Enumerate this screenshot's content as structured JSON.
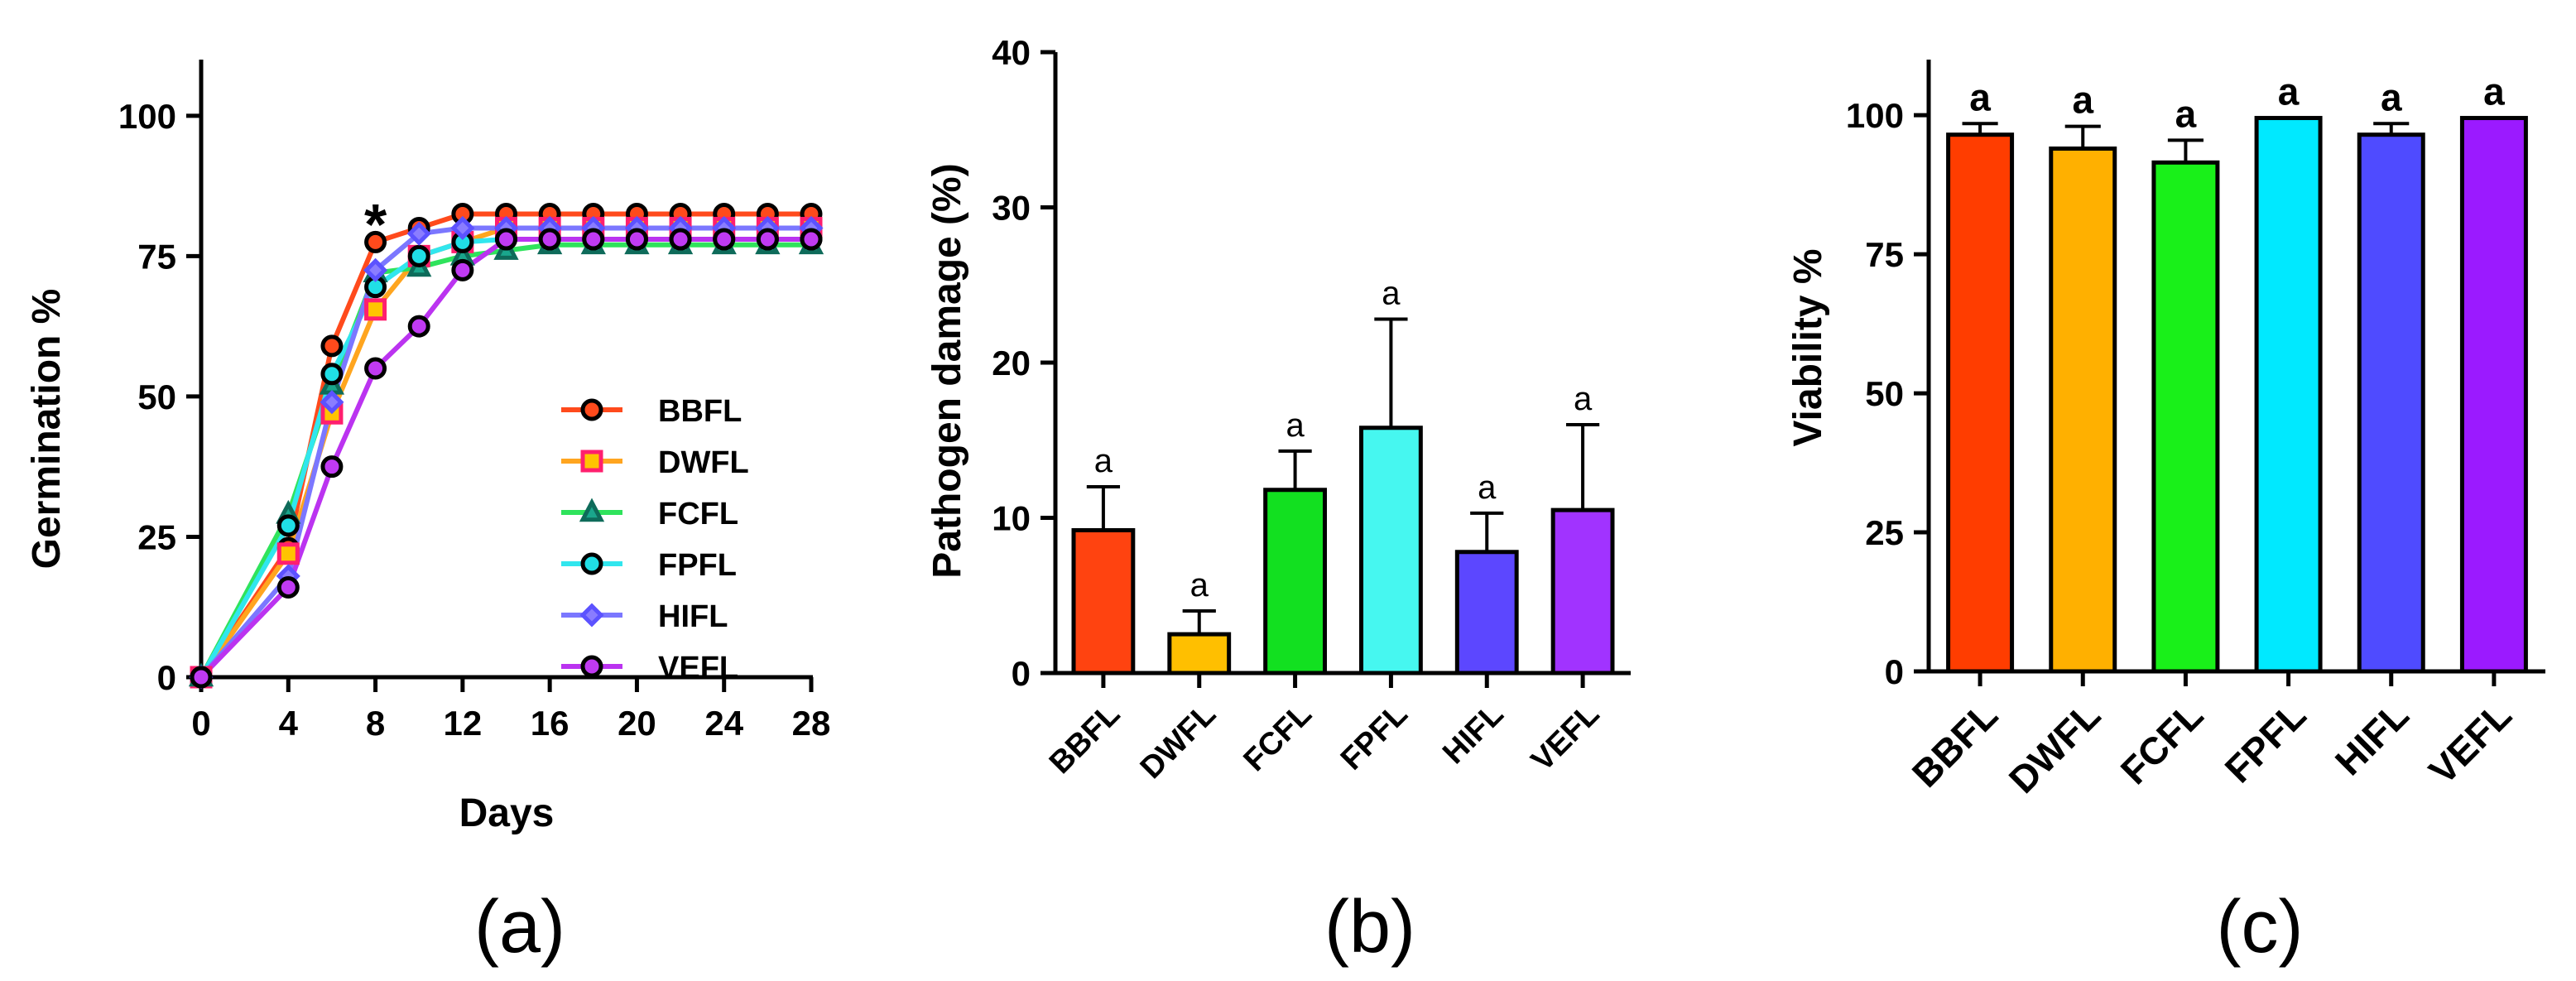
{
  "chart_data": [
    {
      "type": "line",
      "panel_label": "(a)",
      "xlabel": "Days",
      "ylabel": "Germination %",
      "x_ticks": [
        "0",
        "4",
        "8",
        "12",
        "16",
        "20",
        "24",
        "28"
      ],
      "y_ticks": [
        "0",
        "25",
        "50",
        "75",
        "100"
      ],
      "xlim": [
        0,
        28
      ],
      "ylim": [
        0,
        110
      ],
      "x": [
        0,
        4,
        6,
        8,
        10,
        12,
        14,
        16,
        18,
        20,
        22,
        24,
        26,
        28
      ],
      "annotation": {
        "text": "*",
        "x": 8,
        "y": 83
      },
      "legend_position": "bottom-right",
      "series": [
        {
          "name": "BBFL",
          "color": "#ff4a1c",
          "marker": "circle",
          "marker_fill": "#ff4a1c",
          "marker_edge": "#000000",
          "values": [
            0,
            23,
            59,
            77.5,
            80,
            82.5,
            82.5,
            82.5,
            82.5,
            82.5,
            82.5,
            82.5,
            82.5,
            82.5
          ]
        },
        {
          "name": "DWFL",
          "color": "#ffa51f",
          "marker": "square",
          "marker_fill": "#ffc400",
          "marker_edge": "#ff1f6e",
          "values": [
            0,
            22,
            47,
            65.5,
            75,
            77.5,
            80,
            80,
            80,
            80,
            80,
            80,
            80,
            80
          ]
        },
        {
          "name": "FCFL",
          "color": "#2fe35c",
          "marker": "triangle",
          "marker_fill": "#1aa68c",
          "marker_edge": "#0e6b5a",
          "values": [
            0,
            29,
            52,
            72,
            73,
            75,
            76,
            77,
            77,
            77,
            77,
            77,
            77,
            77
          ]
        },
        {
          "name": "FPFL",
          "color": "#31e6ee",
          "marker": "circle",
          "marker_fill": "#20dfe6",
          "marker_edge": "#000000",
          "values": [
            0,
            27,
            54,
            69.5,
            75,
            77.5,
            78,
            78,
            78,
            78,
            78,
            78,
            78,
            78
          ]
        },
        {
          "name": "HIFL",
          "color": "#7b77ff",
          "marker": "diamond",
          "marker_fill": "#8a7dff",
          "marker_edge": "#5c52ff",
          "values": [
            0,
            18,
            49,
            72.5,
            79,
            80,
            80,
            80,
            80,
            80,
            80,
            80,
            80,
            80
          ]
        },
        {
          "name": "VEFL",
          "color": "#bb33f0",
          "marker": "circle",
          "marker_fill": "#c03af2",
          "marker_edge": "#000000",
          "values": [
            0,
            16,
            37.5,
            55,
            62.5,
            72.5,
            78,
            78,
            78,
            78,
            78,
            78,
            78,
            78
          ]
        }
      ]
    },
    {
      "type": "bar",
      "panel_label": "(b)",
      "xlabel": "",
      "ylabel": "Pathogen damage  (%)",
      "categories": [
        "BBFL",
        "DWFL",
        "FCFL",
        "FPFL",
        "HIFL",
        "VEFL"
      ],
      "values": [
        9.2,
        2.5,
        11.8,
        15.8,
        7.8,
        10.5
      ],
      "errors": [
        2.8,
        1.5,
        2.5,
        7.0,
        2.5,
        5.5
      ],
      "significance": [
        "a",
        "a",
        "a",
        "a",
        "a",
        "a"
      ],
      "colors": [
        "#ff4310",
        "#ffbf00",
        "#12e020",
        "#46f7f0",
        "#5c47ff",
        "#a133ff"
      ],
      "y_ticks": [
        "0",
        "10",
        "20",
        "30",
        "40"
      ],
      "ylim": [
        0,
        40
      ]
    },
    {
      "type": "bar",
      "panel_label": "(c)",
      "xlabel": "",
      "ylabel": "Viability %",
      "categories": [
        "BBFL",
        "DWFL",
        "FCFL",
        "FPFL",
        "HIFL",
        "VEFL"
      ],
      "values": [
        96.5,
        94,
        91.5,
        99.5,
        96.5,
        99.5
      ],
      "errors": [
        2.0,
        4.0,
        4.0,
        0,
        2.0,
        0
      ],
      "significance": [
        "a",
        "a",
        "a",
        "a",
        "a",
        "a"
      ],
      "colors": [
        "#ff3d00",
        "#ffb000",
        "#19f019",
        "#00e9ff",
        "#4f4bff",
        "#9b1aff"
      ],
      "y_ticks": [
        "0",
        "25",
        "50",
        "75",
        "100"
      ],
      "ylim": [
        0,
        110
      ]
    }
  ]
}
